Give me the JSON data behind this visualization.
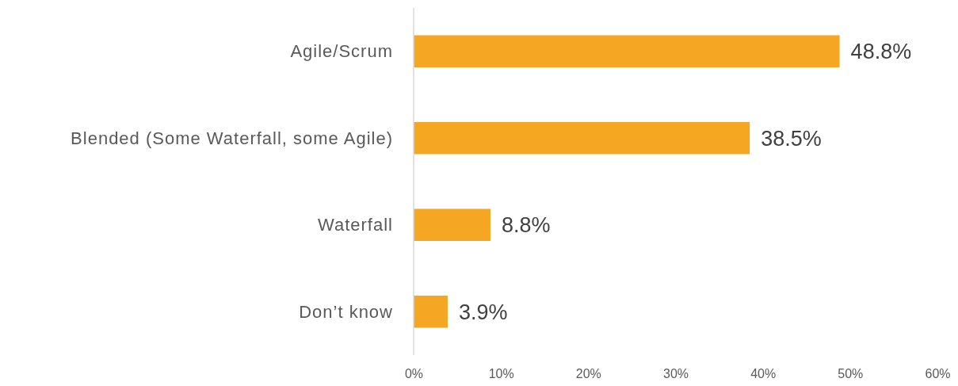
{
  "chart_data": {
    "type": "bar",
    "orientation": "horizontal",
    "categories": [
      "Agile/Scrum",
      "Blended (Some Waterfall, some Agile)",
      "Waterfall",
      "Don’t know"
    ],
    "values": [
      48.8,
      38.5,
      8.8,
      3.9
    ],
    "value_labels": [
      "48.8%",
      "38.5%",
      "8.8%",
      "3.9%"
    ],
    "color": "#f5a623",
    "xlim": [
      0,
      60
    ],
    "xticks": [
      {
        "value": 0,
        "label": "0%"
      },
      {
        "value": 10,
        "label": "10%"
      },
      {
        "value": 20,
        "label": "20%"
      },
      {
        "value": 30,
        "label": "30%"
      },
      {
        "value": 40,
        "label": "40%"
      },
      {
        "value": 50,
        "label": "50%"
      },
      {
        "value": 60,
        "label": "60%"
      }
    ],
    "grid": false
  }
}
